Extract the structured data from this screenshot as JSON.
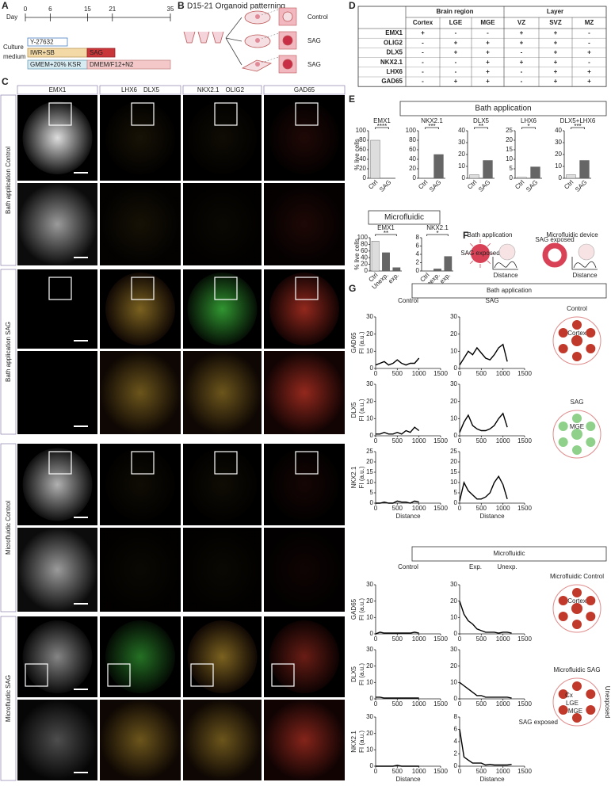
{
  "panel_a": {
    "label": "A",
    "axis_label": "Day",
    "ticks": [
      0,
      6,
      15,
      21,
      35
    ],
    "row_label_lines": [
      "Culture",
      "medium"
    ],
    "bars": [
      "Y-27632",
      "IWR+SB",
      "SAG",
      "GMEM+20% KSR",
      "DMEM/F12+N2"
    ]
  },
  "panel_b": {
    "label": "B",
    "title": "D15-21 Organoid patterning",
    "conditions": [
      "Control",
      "SAG",
      "SAG"
    ]
  },
  "panel_c": {
    "label": "C",
    "columns": [
      [
        {
          "text": "EMX1",
          "color": "#333333"
        }
      ],
      [
        {
          "text": "LHX6",
          "color": "#e0302a"
        },
        {
          "text": "DLX5",
          "color": "#22a02a"
        }
      ],
      [
        {
          "text": "NKX2.1",
          "color": "#e0302a"
        },
        {
          "text": "OLIG2",
          "color": "#22a02a"
        }
      ],
      [
        {
          "text": "GAD65",
          "color": "#e0302a"
        }
      ]
    ],
    "rows": [
      "Bath application Control",
      "Bath application SAG",
      "Microfluidic Control",
      "Microfluidic SAG"
    ]
  },
  "panel_d": {
    "label": "D",
    "groups": [
      "Brain region",
      "Layer"
    ],
    "columns": [
      "Cortex",
      "LGE",
      "MGE",
      "VZ",
      "SVZ",
      "MZ"
    ],
    "rows": [
      {
        "name": "EMX1",
        "cells": [
          "+",
          "-",
          "-",
          "+",
          "+",
          "-"
        ]
      },
      {
        "name": "OLIG2",
        "cells": [
          "-",
          "+",
          "+",
          "+",
          "+",
          "-"
        ]
      },
      {
        "name": "DLX5",
        "cells": [
          "-",
          "+",
          "+",
          "-",
          "+",
          "+"
        ]
      },
      {
        "name": "NKX2.1",
        "cells": [
          "-",
          "-",
          "+",
          "+",
          "+",
          "-"
        ]
      },
      {
        "name": "LHX6",
        "cells": [
          "-",
          "-",
          "+",
          "-",
          "+",
          "+"
        ]
      },
      {
        "name": "GAD65",
        "cells": [
          "-",
          "+",
          "+",
          "-",
          "+",
          "+"
        ]
      }
    ]
  },
  "panel_e": {
    "label": "E",
    "y_label": "% live cells",
    "sections": [
      {
        "title": "Bath application",
        "charts": [
          {
            "title": "EMX1",
            "categories": [
              "Ctrl",
              "SAG"
            ],
            "values": [
              80,
              0
            ],
            "ylim": [
              0,
              100
            ],
            "yticks": [
              0,
              20,
              40,
              60,
              80,
              100
            ],
            "significance": "****"
          },
          {
            "title": "NKX2.1",
            "categories": [
              "Ctrl",
              "SAG"
            ],
            "values": [
              0,
              50
            ],
            "ylim": [
              0,
              100
            ],
            "yticks": [
              0,
              20,
              40,
              60,
              80,
              100
            ],
            "significance": "***"
          },
          {
            "title": "DLX5",
            "categories": [
              "Ctrl",
              "SAG"
            ],
            "values": [
              3,
              15
            ],
            "ylim": [
              0,
              40
            ],
            "yticks": [
              0,
              10,
              20,
              30,
              40
            ],
            "significance": "**"
          },
          {
            "title": "LHX6",
            "categories": [
              "Ctrl",
              "SAG"
            ],
            "values": [
              0.5,
              6
            ],
            "ylim": [
              0,
              25
            ],
            "yticks": [
              0,
              5,
              10,
              15,
              20,
              25
            ],
            "significance": "*"
          },
          {
            "title": "DLX5+LHX6",
            "categories": [
              "Ctrl",
              "SAG"
            ],
            "values": [
              3,
              15
            ],
            "ylim": [
              0,
              40
            ],
            "yticks": [
              0,
              10,
              20,
              30,
              40
            ],
            "significance": "***"
          }
        ]
      },
      {
        "title": "Microfluidic",
        "charts": [
          {
            "title": "EMX1",
            "categories": [
              "Ctrl",
              "Unexp.",
              "exp."
            ],
            "values": [
              90,
              55,
              10
            ],
            "ylim": [
              0,
              100
            ],
            "yticks": [
              0,
              20,
              40,
              60,
              80,
              100
            ],
            "significance": "**"
          },
          {
            "title": "NKX2.1",
            "categories": [
              "Ctrl",
              "Unexp.",
              "exp."
            ],
            "values": [
              0,
              0.5,
              3.5
            ],
            "ylim": [
              0,
              8
            ],
            "yticks": [
              0,
              2,
              4,
              6,
              8
            ],
            "significance": "*"
          }
        ]
      }
    ]
  },
  "panel_f": {
    "label": "F",
    "titles": [
      "Bath application",
      "Microfluidic device"
    ],
    "exposed": [
      "SAG exposed",
      "SAG exposed"
    ],
    "x_label": "Distance"
  },
  "panel_g": {
    "label": "G",
    "y_unit": "FI (a.u.)",
    "x_label": "Distance",
    "x": [
      0,
      100,
      200,
      300,
      400,
      500,
      600,
      700,
      800,
      900,
      1000,
      1100,
      1200,
      1300
    ],
    "xlim": [
      0,
      1500
    ],
    "xticks": [
      0,
      500,
      1000,
      1500
    ],
    "sections": [
      {
        "title": "Bath application",
        "columns": [
          "Control",
          "SAG"
        ],
        "annotations": [],
        "rows": [
          {
            "marker": "GAD65",
            "plots": [
              {
                "ylim": [
                  0,
                  30
                ],
                "yticks": [
                  0,
                  10,
                  20,
                  30
                ],
                "values": [
                  2,
                  3,
                  4,
                  2,
                  3,
                  5,
                  3,
                  2,
                  3,
                  3,
                  6,
                  null,
                  null,
                  null
                ]
              },
              {
                "ylim": [
                  0,
                  30
                ],
                "yticks": [
                  0,
                  10,
                  20,
                  30
                ],
                "values": [
                  2,
                  6,
                  10,
                  8,
                  12,
                  9,
                  6,
                  5,
                  8,
                  12,
                  14,
                  4,
                  null,
                  null
                ]
              }
            ]
          },
          {
            "marker": "DLX5",
            "plots": [
              {
                "ylim": [
                  0,
                  30
                ],
                "yticks": [
                  0,
                  10,
                  20,
                  30
                ],
                "values": [
                  1,
                  1,
                  2,
                  1,
                  1,
                  2,
                  1,
                  3,
                  2,
                  5,
                  3,
                  null,
                  null,
                  null
                ]
              },
              {
                "ylim": [
                  0,
                  30
                ],
                "yticks": [
                  0,
                  10,
                  20,
                  30
                ],
                "values": [
                  2,
                  8,
                  12,
                  6,
                  4,
                  3,
                  3,
                  4,
                  6,
                  10,
                  13,
                  5,
                  null,
                  null
                ]
              }
            ]
          },
          {
            "marker": "NKX2.1",
            "plots": [
              {
                "ylim": [
                  0,
                  25
                ],
                "yticks": [
                  0,
                  5,
                  10,
                  15,
                  20,
                  25
                ],
                "values": [
                  0,
                  0,
                  0.5,
                  0,
                  0,
                  1,
                  0.5,
                  0.5,
                  0,
                  1,
                  0.5,
                  null,
                  null,
                  null
                ]
              },
              {
                "ylim": [
                  0,
                  25
                ],
                "yticks": [
                  0,
                  5,
                  10,
                  15,
                  20,
                  25
                ],
                "values": [
                  1,
                  10,
                  6,
                  4,
                  2,
                  2,
                  3,
                  5,
                  10,
                  13,
                  9,
                  2,
                  null,
                  null
                ]
              }
            ]
          }
        ],
        "diagrams": [
          {
            "title": "Control",
            "center": "Cortex",
            "dots": "#c0392b"
          },
          {
            "title": "SAG",
            "center": "MGE",
            "dots": "#8fd18a"
          }
        ]
      },
      {
        "title": "Microfluidic",
        "columns": [
          "Control",
          ""
        ],
        "annotations": [
          "Exp.",
          "Unexp."
        ],
        "rows": [
          {
            "marker": "GAD65",
            "plots": [
              {
                "ylim": [
                  0,
                  30
                ],
                "yticks": [
                  0,
                  10,
                  20,
                  30
                ],
                "values": [
                  0,
                  1,
                  0.5,
                  0.5,
                  0.5,
                  0.5,
                  0.5,
                  0.5,
                  0.5,
                  1,
                  0.5,
                  null,
                  null,
                  null
                ]
              },
              {
                "ylim": [
                  0,
                  30
                ],
                "yticks": [
                  0,
                  10,
                  20,
                  30
                ],
                "values": [
                  20,
                  12,
                  8,
                  6,
                  3,
                  2,
                  1,
                  1,
                  1,
                  0.5,
                  1,
                  1,
                  0.5,
                  null
                ]
              }
            ]
          },
          {
            "marker": "DLX5",
            "plots": [
              {
                "ylim": [
                  0,
                  30
                ],
                "yticks": [
                  0,
                  10,
                  20,
                  30
                ],
                "values": [
                  1,
                  1,
                  0.5,
                  0.5,
                  0.5,
                  0.5,
                  0.5,
                  0.5,
                  0.5,
                  0.5,
                  0.5,
                  null,
                  null,
                  null
                ]
              },
              {
                "ylim": [
                  0,
                  30
                ],
                "yticks": [
                  0,
                  10,
                  20,
                  30
                ],
                "values": [
                  10,
                  8,
                  6,
                  4,
                  2,
                  2,
                  1,
                  1,
                  1,
                  1,
                  1,
                  1,
                  0.5,
                  null
                ]
              }
            ]
          },
          {
            "marker": "NKX2.1",
            "plots": [
              {
                "ylim": [
                  0,
                  30
                ],
                "yticks": [
                  0,
                  10,
                  20,
                  30
                ],
                "values": [
                  0,
                  0,
                  0,
                  0,
                  0,
                  0.5,
                  0,
                  0,
                  0,
                  0,
                  0,
                  null,
                  null,
                  null
                ]
              },
              {
                "ylim": [
                  0,
                  8
                ],
                "yticks": [
                  0,
                  2,
                  4,
                  6,
                  8
                ],
                "values": [
                  6,
                  1.5,
                  1,
                  0.5,
                  0.5,
                  0.5,
                  0.2,
                  0.3,
                  0.2,
                  0.2,
                  0.2,
                  0.2,
                  0.3,
                  null
                ]
              }
            ]
          }
        ],
        "diagrams": [
          {
            "title": "Microfluidic Control",
            "center": "Cortex",
            "dots": "#c0392b"
          },
          {
            "title": "Microfluidic SAG",
            "center": "",
            "dots": "#c0392b",
            "region_labels": [
              "Cx",
              "LGE",
              "MGE"
            ],
            "side_labels": [
              "Unexposed",
              "SAG exposed"
            ]
          }
        ]
      }
    ]
  }
}
